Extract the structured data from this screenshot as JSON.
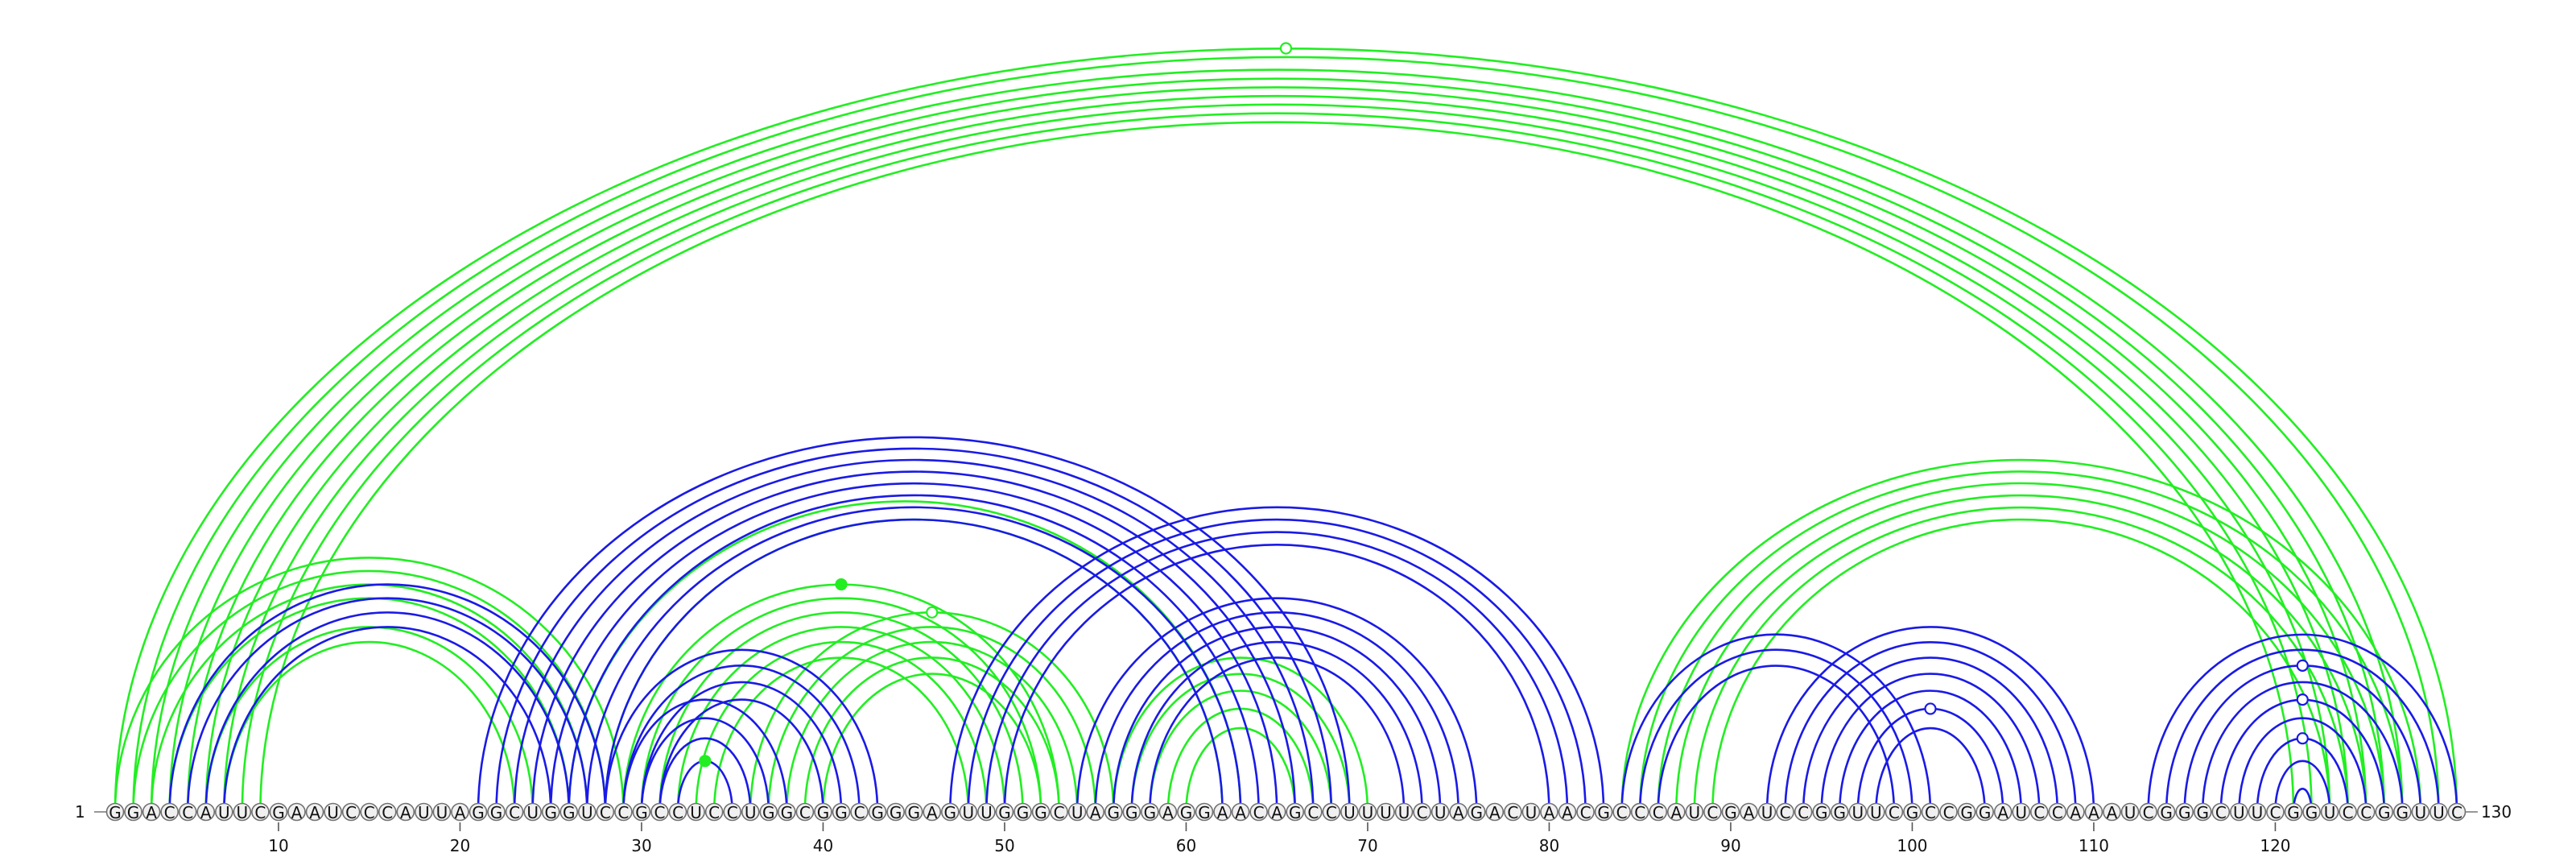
{
  "sequence": "GGACCAUUCGAAUCCCAUUAGGCUGGUCCGCCUCCUGGCGGCGGGAGUUGGGCUAGGGAGGAACAGCCUUUUCUAGACUAACGCCCAUCGAUCCGGUUCGCCGGAUCCAAAUCGGGCUUCGGUCCGGUUC",
  "start_label": "1",
  "end_label": "130",
  "ticks": [
    10,
    20,
    30,
    40,
    50,
    60,
    70,
    80,
    90,
    100,
    110,
    120
  ],
  "colors": {
    "green": "#22ee22",
    "blue": "#1a1ae6"
  },
  "arcs": {
    "green": [
      [
        1,
        130
      ],
      [
        2,
        129
      ],
      [
        3,
        127
      ],
      [
        4,
        126
      ],
      [
        5,
        125
      ],
      [
        6,
        124
      ],
      [
        7,
        123
      ],
      [
        8,
        122
      ],
      [
        9,
        121
      ],
      [
        1,
        29
      ],
      [
        2,
        28
      ],
      [
        3,
        27
      ],
      [
        4,
        26
      ],
      [
        6,
        24
      ],
      [
        7,
        23
      ],
      [
        29,
        53
      ],
      [
        30,
        52
      ],
      [
        31,
        51
      ],
      [
        32,
        50
      ],
      [
        33,
        49
      ],
      [
        34,
        48
      ],
      [
        26,
        63
      ],
      [
        28,
        62
      ],
      [
        36,
        56
      ],
      [
        37,
        55
      ],
      [
        38,
        54
      ],
      [
        39,
        53
      ],
      [
        40,
        52
      ],
      [
        56,
        70
      ],
      [
        57,
        69
      ],
      [
        58,
        68
      ],
      [
        59,
        67
      ],
      [
        60,
        66
      ],
      [
        84,
        128
      ],
      [
        85,
        127
      ],
      [
        86,
        126
      ],
      [
        87,
        125
      ],
      [
        88,
        124
      ],
      [
        89,
        123
      ]
    ],
    "blue": [
      [
        4,
        28
      ],
      [
        5,
        27
      ],
      [
        6,
        26
      ],
      [
        7,
        25
      ],
      [
        21,
        69
      ],
      [
        22,
        68
      ],
      [
        23,
        67
      ],
      [
        24,
        66
      ],
      [
        25,
        65
      ],
      [
        26,
        64
      ],
      [
        27,
        63
      ],
      [
        28,
        62
      ],
      [
        29,
        38
      ],
      [
        30,
        37
      ],
      [
        31,
        36
      ],
      [
        32,
        35
      ],
      [
        28,
        43
      ],
      [
        29,
        42
      ],
      [
        30,
        41
      ],
      [
        31,
        40
      ],
      [
        47,
        83
      ],
      [
        48,
        82
      ],
      [
        49,
        81
      ],
      [
        50,
        80
      ],
      [
        54,
        76
      ],
      [
        55,
        75
      ],
      [
        56,
        74
      ],
      [
        57,
        73
      ],
      [
        58,
        72
      ],
      [
        84,
        101
      ],
      [
        85,
        100
      ],
      [
        86,
        99
      ],
      [
        92,
        110
      ],
      [
        93,
        109
      ],
      [
        94,
        108
      ],
      [
        95,
        107
      ],
      [
        96,
        106
      ],
      [
        97,
        105
      ],
      [
        98,
        104
      ],
      [
        113,
        130
      ],
      [
        114,
        129
      ],
      [
        115,
        128
      ],
      [
        116,
        127
      ],
      [
        117,
        126
      ],
      [
        118,
        125
      ],
      [
        119,
        124
      ],
      [
        120,
        123
      ],
      [
        121,
        122
      ]
    ]
  },
  "markers": [
    {
      "between": [
        1,
        130
      ],
      "color": "green",
      "filled": false
    },
    {
      "between": [
        29,
        53
      ],
      "color": "green",
      "filled": true
    },
    {
      "between": [
        36,
        56
      ],
      "color": "green",
      "filled": false
    },
    {
      "between": [
        32,
        35
      ],
      "color": "green",
      "filled": true
    },
    {
      "between": [
        97,
        105
      ],
      "color": "blue",
      "filled": false
    },
    {
      "between": [
        115,
        128
      ],
      "color": "blue",
      "filled": false
    },
    {
      "between": [
        117,
        126
      ],
      "color": "blue",
      "filled": false
    },
    {
      "between": [
        119,
        124
      ],
      "color": "blue",
      "filled": false
    }
  ]
}
